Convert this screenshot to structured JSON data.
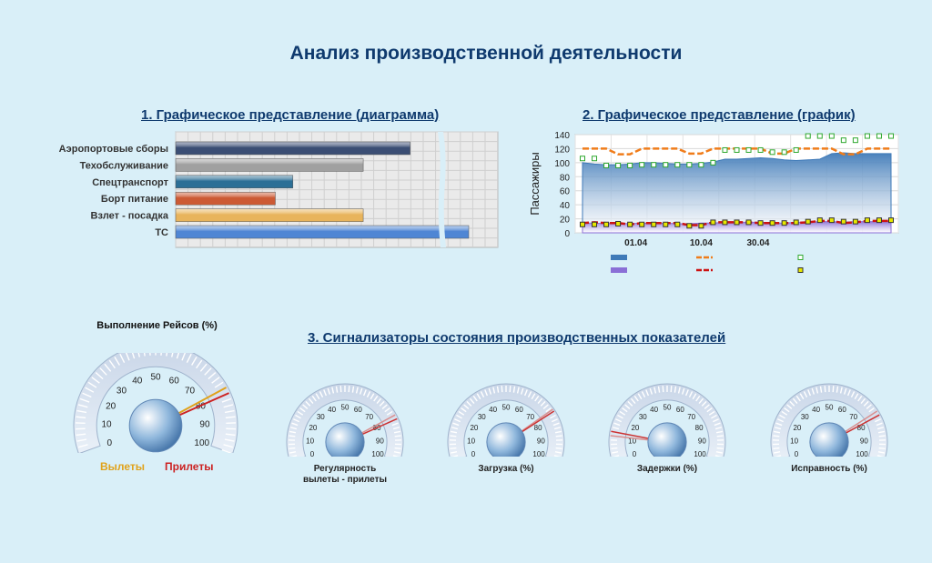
{
  "page": {
    "title": "Анализ производственной деятельности",
    "section1_title": "1. Графическое представление (диаграмма)",
    "section2_title": "2. Графическое представление (график)",
    "section3_title": "3. Сигнализаторы состояния производственных показателей"
  },
  "chart_data": [
    {
      "type": "bar",
      "orientation": "horizontal",
      "categories": [
        "Аэропортовые сборы",
        "Техобслуживание",
        "Спецтранспорт",
        "Борт питание",
        "Взлет - посадка",
        "ТС"
      ],
      "values": [
        80,
        64,
        40,
        34,
        64,
        100
      ],
      "axis_break": true,
      "grid": true,
      "colors": [
        "#3b4e74",
        "#a0a0a0",
        "#2c6f96",
        "#cc5a34",
        "#e8b45c",
        "#4f86d4"
      ]
    },
    {
      "type": "line",
      "ylabel": "Пассажиры",
      "ylim": [
        0,
        140
      ],
      "yticks": [
        0,
        20,
        40,
        60,
        80,
        100,
        120,
        140
      ],
      "xticks": [
        "01.04",
        "10.04",
        "30.04"
      ],
      "grid": true,
      "series": [
        {
          "style": "area",
          "color": "#3f7ab8",
          "values": [
            100,
            98,
            97,
            97,
            98,
            100,
            100,
            99,
            98,
            98,
            99,
            101,
            105,
            105,
            106,
            107,
            106,
            104,
            103,
            104,
            105,
            113,
            114,
            113,
            113,
            113,
            113
          ]
        },
        {
          "style": "area",
          "color": "#8a6fd6",
          "values": [
            14,
            14,
            13,
            14,
            13,
            14,
            13,
            14,
            13,
            13,
            14,
            14,
            15,
            15,
            15,
            15,
            14,
            14,
            15,
            15,
            16,
            16,
            15,
            16,
            16,
            16,
            16
          ]
        },
        {
          "style": "dashed",
          "color": "#f07c1a",
          "values": [
            120,
            120,
            120,
            112,
            112,
            120,
            120,
            120,
            120,
            113,
            113,
            120,
            120,
            120,
            120,
            120,
            113,
            113,
            120,
            120,
            120,
            120,
            112,
            112,
            120,
            120,
            120
          ]
        },
        {
          "style": "dashed",
          "color": "#cc1111",
          "values": [
            14,
            15,
            14,
            14,
            12,
            14,
            14,
            14,
            14,
            11,
            11,
            15,
            15,
            15,
            15,
            14,
            14,
            14,
            14,
            15,
            17,
            17,
            14,
            15,
            17,
            17,
            17
          ]
        },
        {
          "style": "markers",
          "color": "#2ea82e",
          "values": [
            106,
            106,
            96,
            96,
            96,
            97,
            97,
            97,
            97,
            97,
            97,
            100,
            118,
            118,
            118,
            118,
            115,
            115,
            118,
            138,
            138,
            138,
            132,
            132,
            138,
            138,
            138
          ]
        },
        {
          "style": "markers",
          "color": "#e8e800",
          "values": [
            12,
            12,
            12,
            13,
            12,
            12,
            12,
            12,
            12,
            10,
            10,
            15,
            15,
            15,
            15,
            14,
            14,
            14,
            15,
            16,
            18,
            18,
            16,
            16,
            18,
            18,
            18
          ]
        }
      ]
    }
  ],
  "gauges": {
    "main": {
      "title": "Выполнение Рейсов  (%)",
      "left_label": "Вылеты",
      "right_label": "Прилеты",
      "left_value": 78,
      "right_value": 80
    },
    "ticks": [
      "0",
      "10",
      "20",
      "30",
      "40",
      "50",
      "60",
      "70",
      "80",
      "90",
      "100"
    ],
    "small": [
      {
        "label_line1": "Регулярность",
        "label_line2": "вылеты - прилеты",
        "values": [
          78,
          80
        ]
      },
      {
        "label_line1": "Загрузка (%)",
        "label_line2": "",
        "values": [
          75,
          76
        ]
      },
      {
        "label_line1": "Задержки (%)",
        "label_line2": "",
        "values": [
          12,
          14
        ]
      },
      {
        "label_line1": "Исправность (%)",
        "label_line2": "",
        "values": [
          76,
          78
        ]
      }
    ]
  }
}
